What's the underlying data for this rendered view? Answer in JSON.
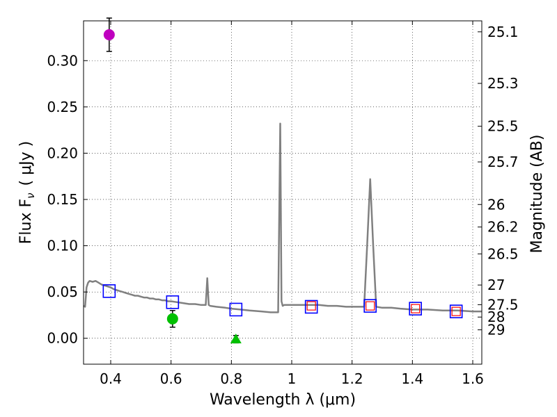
{
  "chart_data": {
    "type": "scatter",
    "xlabel": "Wavelength  λ (μm)",
    "ylabel": "Flux  F",
    "ylabel_subscript": "ν",
    "ylabel_unit": "( μJy )",
    "y2label": "Magnitude (AB)",
    "xlim": [
      0.31,
      1.63
    ],
    "ylim": [
      -0.028,
      0.343
    ],
    "grid": true,
    "x_ticks": [
      "0.4",
      "0.6",
      "0.8",
      "1",
      "1.2",
      "1.4",
      "1.6"
    ],
    "x_tick_values": [
      0.4,
      0.6,
      0.8,
      1.0,
      1.2,
      1.4,
      1.6
    ],
    "y_ticks": [
      "0.00",
      "0.05",
      "0.10",
      "0.15",
      "0.20",
      "0.25",
      "0.30"
    ],
    "y_tick_values": [
      0.0,
      0.05,
      0.1,
      0.15,
      0.2,
      0.25,
      0.3
    ],
    "mag_ticks": [
      "25.1",
      "25.3",
      "25.5",
      "25.7",
      "26",
      "26.2",
      "26.5",
      "27",
      "27.5",
      "28",
      "29"
    ],
    "mag_values": [
      25.1,
      25.3,
      25.5,
      25.7,
      26.0,
      26.2,
      26.5,
      27.0,
      27.5,
      28.0,
      29.0
    ],
    "observed_points": [
      {
        "x": 0.395,
        "y": 0.328,
        "err": 0.018,
        "marker": "circle",
        "color": "#bf00bf"
      },
      {
        "x": 0.605,
        "y": 0.021,
        "err": 0.009,
        "marker": "circle",
        "color": "#00bf00"
      },
      {
        "x": 0.815,
        "y": -0.001,
        "err": 0.004,
        "marker": "triangle",
        "color": "#00bf00"
      }
    ],
    "model_photometry": {
      "marker": "square",
      "color": "#0000ff",
      "x": [
        0.395,
        0.605,
        0.815,
        1.065,
        1.26,
        1.41,
        1.545
      ],
      "y": [
        0.051,
        0.039,
        0.031,
        0.034,
        0.035,
        0.032,
        0.029
      ]
    },
    "observed_upper": {
      "marker": "square",
      "color": "#ff0000",
      "x": [
        1.065,
        1.26,
        1.41,
        1.545
      ],
      "y": [
        0.035,
        0.035,
        0.032,
        0.029
      ]
    },
    "spectrum": {
      "color": "#808080",
      "x": [
        0.31,
        0.315,
        0.32,
        0.325,
        0.33,
        0.34,
        0.35,
        0.36,
        0.37,
        0.38,
        0.39,
        0.4,
        0.41,
        0.42,
        0.43,
        0.44,
        0.45,
        0.46,
        0.47,
        0.48,
        0.49,
        0.5,
        0.51,
        0.52,
        0.53,
        0.54,
        0.55,
        0.56,
        0.57,
        0.58,
        0.59,
        0.6,
        0.62,
        0.64,
        0.66,
        0.68,
        0.7,
        0.715,
        0.72,
        0.725,
        0.73,
        0.75,
        0.78,
        0.8,
        0.83,
        0.86,
        0.9,
        0.93,
        0.955,
        0.962,
        0.966,
        0.97,
        0.975,
        0.98,
        1.0,
        1.03,
        1.06,
        1.09,
        1.12,
        1.15,
        1.18,
        1.21,
        1.24,
        1.25,
        1.26,
        1.27,
        1.28,
        1.3,
        1.33,
        1.36,
        1.4,
        1.45,
        1.5,
        1.55,
        1.6,
        1.63
      ],
      "y": [
        0.035,
        0.034,
        0.055,
        0.06,
        0.062,
        0.061,
        0.062,
        0.06,
        0.058,
        0.057,
        0.056,
        0.055,
        0.053,
        0.052,
        0.051,
        0.05,
        0.049,
        0.048,
        0.047,
        0.046,
        0.046,
        0.045,
        0.044,
        0.044,
        0.043,
        0.043,
        0.042,
        0.042,
        0.041,
        0.041,
        0.04,
        0.04,
        0.039,
        0.038,
        0.037,
        0.037,
        0.036,
        0.036,
        0.065,
        0.036,
        0.035,
        0.034,
        0.033,
        0.032,
        0.031,
        0.03,
        0.029,
        0.028,
        0.028,
        0.232,
        0.04,
        0.035,
        0.036,
        0.036,
        0.036,
        0.036,
        0.036,
        0.036,
        0.035,
        0.035,
        0.034,
        0.034,
        0.034,
        0.1,
        0.172,
        0.1,
        0.034,
        0.033,
        0.033,
        0.032,
        0.031,
        0.031,
        0.03,
        0.03,
        0.029,
        0.029
      ]
    }
  }
}
